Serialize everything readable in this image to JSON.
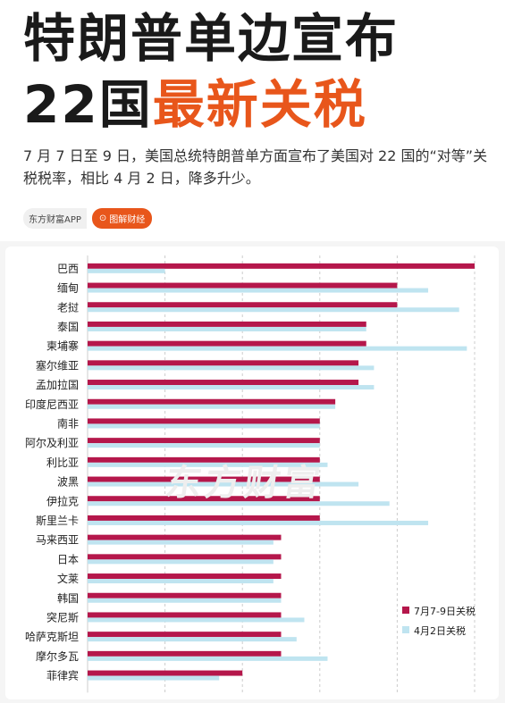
{
  "header": {
    "title_line1": "特朗普单边宣布",
    "title_line2_a": "22国",
    "title_line2_b": "最新关税",
    "subtitle": "7 月 7 日至 9 日，美国总统特朗普单方面宣布了美国对 22 国的“对等”关税税率，相比 4 月 2 日，降多升少。",
    "source_app": "东方财富APP",
    "source_tag": "图解财经",
    "accent_color": "#e8561b"
  },
  "watermark": "东方财富",
  "chart_data": {
    "type": "bar",
    "orientation": "horizontal",
    "categories": [
      "巴西",
      "缅甸",
      "老挝",
      "泰国",
      "柬埔寨",
      "塞尔维亚",
      "孟加拉国",
      "印度尼西亚",
      "南非",
      "阿尔及利亚",
      "利比亚",
      "波黑",
      "伊拉克",
      "斯里兰卡",
      "马来西亚",
      "日本",
      "文莱",
      "韩国",
      "突尼斯",
      "哈萨克斯坦",
      "摩尔多瓦",
      "菲律宾"
    ],
    "series": [
      {
        "name": "7月7-9日关税",
        "color": "#b5174b",
        "values": [
          50,
          40,
          40,
          36,
          36,
          35,
          35,
          32,
          30,
          30,
          30,
          30,
          30,
          30,
          25,
          25,
          25,
          25,
          25,
          25,
          25,
          20
        ]
      },
      {
        "name": "4月2日关税",
        "color": "#bfe4f0",
        "values": [
          10,
          44,
          48,
          36,
          49,
          37,
          37,
          32,
          30,
          30,
          31,
          35,
          39,
          44,
          24,
          24,
          24,
          25,
          28,
          27,
          31,
          17
        ]
      }
    ],
    "x_ticks": [
      "0%",
      "10%",
      "20%",
      "30%",
      "40%",
      "50%"
    ],
    "xlim": [
      0,
      50
    ],
    "grid": true,
    "legend_position": "bottom-right"
  }
}
